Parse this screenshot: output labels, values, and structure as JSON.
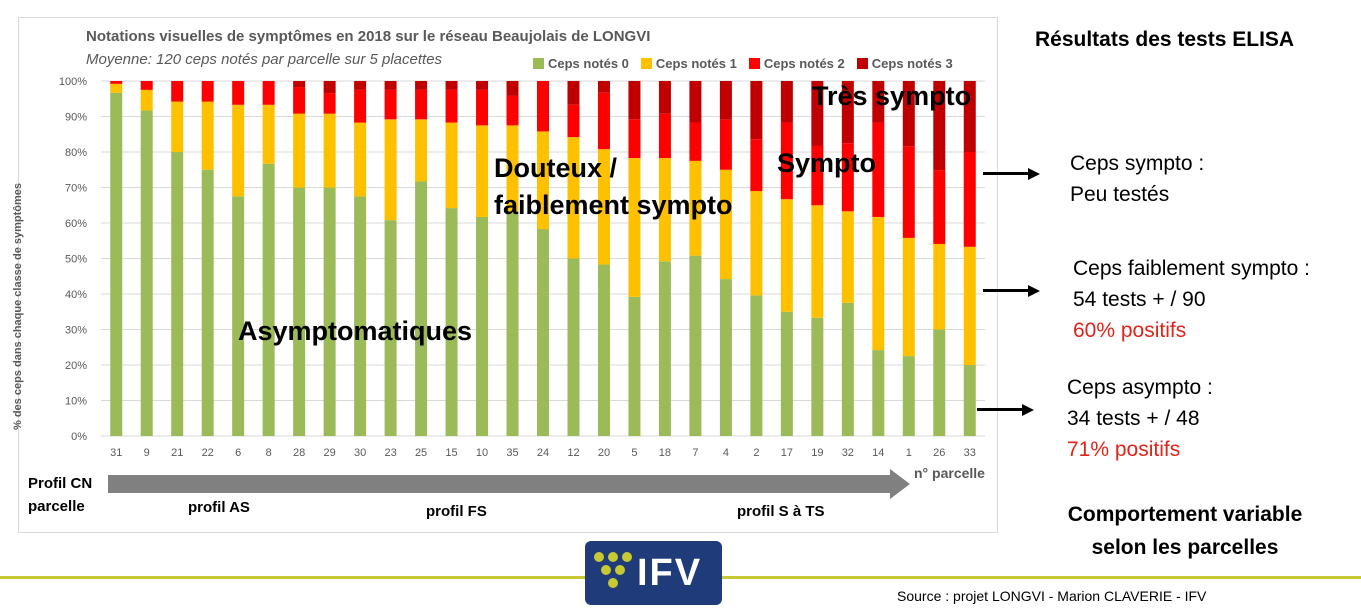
{
  "chart_data": {
    "type": "bar",
    "stacked": true,
    "title": "Notations visuelles de symptômes en 2018 sur le réseau Beaujolais de LONGVI",
    "subtitle": "Moyenne: 120 ceps notés par parcelle sur 5 placettes",
    "ylabel": "% des ceps dans chaque classe de symptômes",
    "xlabel": "n° parcelle",
    "ylim": [
      0,
      100
    ],
    "yticks": [
      "0%",
      "10%",
      "20%",
      "30%",
      "40%",
      "50%",
      "60%",
      "70%",
      "80%",
      "90%",
      "100%"
    ],
    "grid": true,
    "legend_position": "top-right",
    "categories": [
      "31",
      "9",
      "21",
      "22",
      "6",
      "8",
      "28",
      "29",
      "30",
      "23",
      "25",
      "15",
      "10",
      "35",
      "24",
      "12",
      "20",
      "5",
      "18",
      "7",
      "4",
      "2",
      "17",
      "19",
      "32",
      "14",
      "1",
      "26",
      "33"
    ],
    "series": [
      {
        "name": "Ceps notés 0",
        "color": "#9bbb59",
        "values": [
          96.7,
          91.7,
          80,
          75,
          67.5,
          76.7,
          70,
          70,
          67.5,
          60.8,
          71.7,
          64.2,
          61.7,
          63.3,
          58.3,
          50,
          48.3,
          39.2,
          49.2,
          50.8,
          44.2,
          39.6,
          35,
          33.3,
          37.5,
          24.2,
          22.5,
          30,
          20
        ]
      },
      {
        "name": "Ceps notés 1",
        "color": "#ffc000",
        "values": [
          2.5,
          5.8,
          14.2,
          19.2,
          25.8,
          16.6,
          20.8,
          20.8,
          20.8,
          28.4,
          17.5,
          24.1,
          25.8,
          24.2,
          27.5,
          34.2,
          32.5,
          39.1,
          29.1,
          26.7,
          30.8,
          29.4,
          31.7,
          31.7,
          25.8,
          37.5,
          33.3,
          24.1,
          33.3
        ]
      },
      {
        "name": "Ceps notés 2",
        "color": "#ff0000",
        "values": [
          0.8,
          2.5,
          5.8,
          5.8,
          6.7,
          6.7,
          7.5,
          5.8,
          9.2,
          8.3,
          8.3,
          9.2,
          10,
          8.3,
          14.2,
          9.1,
          15.9,
          10.9,
          12.5,
          10.8,
          14.1,
          14.6,
          21.6,
          16.7,
          19.2,
          26.6,
          25.8,
          20.8,
          26.7
        ]
      },
      {
        "name": "Ceps notés 3",
        "color": "#c00000",
        "values": [
          0,
          0,
          0,
          0,
          0,
          0,
          1.7,
          3.4,
          2.5,
          2.5,
          2.5,
          2.5,
          2.5,
          4.2,
          0,
          6.7,
          3.3,
          10.8,
          9.2,
          11.7,
          10.9,
          16.4,
          11.7,
          18.3,
          17.5,
          11.7,
          18.4,
          25.1,
          20
        ]
      }
    ],
    "annotations": [
      "Asymptomatiques",
      "Douteux /",
      "faiblement sympto",
      "Sympto",
      "Très sympto"
    ]
  },
  "profile": {
    "axis_label_1": "Profil CN",
    "axis_label_2": "parcelle",
    "groups": [
      "profil AS",
      "profil FS",
      "profil S à TS"
    ]
  },
  "elisa": {
    "title": "Résultats des tests ELISA",
    "sympto": {
      "line1": "Ceps sympto :",
      "line2": "Peu testés"
    },
    "faible": {
      "line1": "Ceps faiblement sympto :",
      "line2": "54 tests + / 90",
      "line3": "60% positifs"
    },
    "asympto": {
      "line1": "Ceps asympto :",
      "line2": "34 tests + / 48",
      "line3": "71% positifs"
    },
    "conclusion_1": "Comportement variable",
    "conclusion_2": "selon les parcelles"
  },
  "footer": {
    "logo_text": "IFV",
    "source": "Source : projet LONGVI - Marion CLAVERIE - IFV"
  },
  "colors": {
    "accent_red": "#e2231a",
    "logo_bg": "#1f3b7a",
    "rule": "#c8c832"
  }
}
